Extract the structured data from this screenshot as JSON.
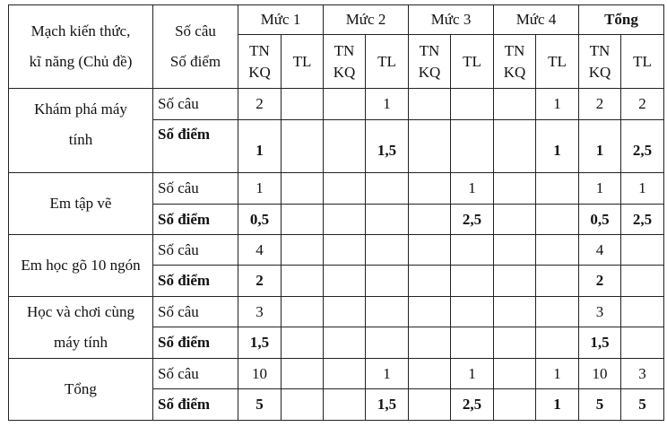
{
  "header": {
    "topic": "Mạch kiến thức, kĩ năng (Chủ đề)",
    "topic_line1": "Mạch kiến thức,",
    "topic_line2": "kĩ năng (Chủ đề)",
    "count_line1": "Số câu",
    "count_line2": "Số điểm",
    "levels": [
      "Mức 1",
      "Mức 2",
      "Mức 3",
      "Mức 4",
      "Tổng"
    ],
    "sub_tn_1": "TN",
    "sub_tn_2": "KQ",
    "sub_tl": "TL"
  },
  "labels": {
    "count": "Số câu",
    "score": "Số điểm"
  },
  "rows": [
    {
      "topic_lines": [
        "Khám phá máy",
        "tính"
      ],
      "count": [
        "2",
        "",
        "",
        "1",
        "",
        "",
        "",
        "1",
        "2",
        "2"
      ],
      "score": [
        "1",
        "",
        "",
        "1,5",
        "",
        "",
        "",
        "1",
        "1",
        "2,5"
      ]
    },
    {
      "topic_lines": [
        "Em tập vẽ"
      ],
      "count": [
        "1",
        "",
        "",
        "",
        "",
        "1",
        "",
        "",
        "1",
        "1"
      ],
      "score": [
        "0,5",
        "",
        "",
        "",
        "",
        "2,5",
        "",
        "",
        "0,5",
        "2,5"
      ]
    },
    {
      "topic_lines": [
        "Em học gõ 10 ngón"
      ],
      "count": [
        "4",
        "",
        "",
        "",
        "",
        "",
        "",
        "",
        "4",
        ""
      ],
      "score": [
        "2",
        "",
        "",
        "",
        "",
        "",
        "",
        "",
        "2",
        ""
      ]
    },
    {
      "topic_lines": [
        "Học và chơi cùng",
        "máy tính"
      ],
      "count": [
        "3",
        "",
        "",
        "",
        "",
        "",
        "",
        "",
        "3",
        ""
      ],
      "score": [
        "1,5",
        "",
        "",
        "",
        "",
        "",
        "",
        "",
        "1,5",
        ""
      ]
    },
    {
      "topic_lines": [
        "Tổng"
      ],
      "count": [
        "10",
        "",
        "",
        "1",
        "",
        "1",
        "",
        "1",
        "10",
        "3"
      ],
      "score": [
        "5",
        "",
        "",
        "1,5",
        "",
        "2,5",
        "",
        "1",
        "5",
        "5"
      ]
    }
  ]
}
